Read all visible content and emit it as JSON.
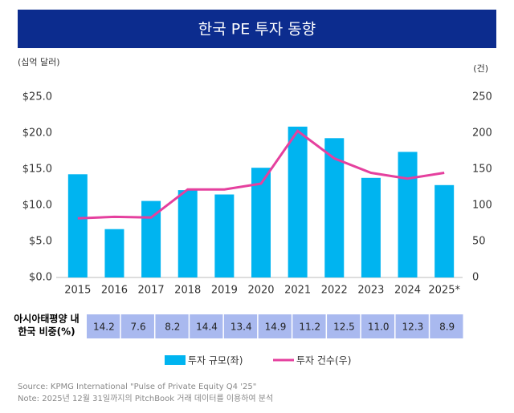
{
  "chart_data": {
    "type": "bar_line",
    "title": "한국 PE 투자 동향",
    "y_label": "(십억 달러)",
    "y2_label": "(건)",
    "categories": [
      "2015",
      "2016",
      "2017",
      "2018",
      "2019",
      "2020",
      "2021",
      "2022",
      "2023",
      "2024",
      "2025*"
    ],
    "series": [
      {
        "name": "투자 규모(좌)",
        "type": "bar",
        "color": "#00b4f0",
        "values": [
          14.3,
          6.7,
          10.6,
          12.1,
          11.5,
          15.2,
          20.9,
          19.3,
          13.8,
          17.4,
          12.8
        ]
      },
      {
        "name": "투자 건수(우)",
        "type": "line",
        "axis": "y2",
        "color": "#e5409e",
        "values": [
          82,
          84,
          83,
          122,
          122,
          130,
          203,
          165,
          145,
          137,
          145
        ]
      }
    ],
    "ylim": [
      0,
      25
    ],
    "yticks": [
      {
        "value": 0,
        "label": "$0.0"
      },
      {
        "value": 5,
        "label": "$5.0"
      },
      {
        "value": 10,
        "label": "$10.0"
      },
      {
        "value": 15,
        "label": "$15.0"
      },
      {
        "value": 20,
        "label": "$20.0"
      },
      {
        "value": 25,
        "label": "$25.0"
      }
    ],
    "y2lim": [
      0,
      250
    ],
    "y2ticks": [
      0,
      50,
      100,
      150,
      200,
      250
    ],
    "grid": false,
    "share_table": {
      "label_lines": [
        "아시아태평양 내",
        "한국 비중(%)"
      ],
      "cells": [
        "14.2",
        "7.6",
        "8.2",
        "14.4",
        "13.4",
        "14.9",
        "11.2",
        "12.5",
        "11.0",
        "12.3",
        "8.9"
      ]
    },
    "notes": [
      "Source: KPMG International \"Pulse of Private Equity Q4 '25\"",
      "Note: 2025년 12월 31일까지의 PitchBook 거래 데이터를 이용하여 분석"
    ]
  }
}
